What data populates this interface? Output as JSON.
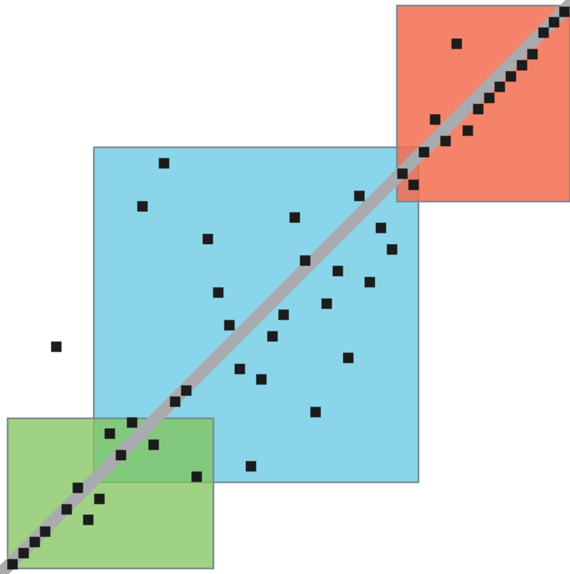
{
  "chart_data": {
    "type": "scatter",
    "title": "",
    "xlabel": "",
    "ylabel": "",
    "grid": false,
    "colors": {
      "green_region": "#8cc66f",
      "blue_region": "#73cde5",
      "red_region": "#f36b4c",
      "region_border": "#7b8b90",
      "diagonal_band": "#a9abae",
      "points": "#1c1c1c"
    },
    "series": [
      {
        "points": [
          [
            18,
            812
          ],
          [
            34,
            796
          ],
          [
            50,
            780
          ],
          [
            65,
            765
          ],
          [
            96,
            733
          ],
          [
            112,
            702
          ],
          [
            127,
            748
          ],
          [
            143,
            718
          ],
          [
            158,
            624
          ],
          [
            174,
            655
          ],
          [
            190,
            608
          ],
          [
            221,
            640
          ],
          [
            252,
            578
          ],
          [
            268,
            562
          ],
          [
            283,
            686
          ],
          [
            361,
            671
          ],
          [
            345,
            531
          ],
          [
            376,
            546
          ],
          [
            454,
            593
          ],
          [
            501,
            515
          ],
          [
            392,
            484
          ],
          [
            330,
            468
          ],
          [
            408,
            453
          ],
          [
            470,
            437
          ],
          [
            314,
            421
          ],
          [
            532,
            406
          ],
          [
            486,
            390
          ],
          [
            439,
            375
          ],
          [
            564,
            359
          ],
          [
            548,
            328
          ],
          [
            299,
            344
          ],
          [
            424,
            313
          ],
          [
            517,
            282
          ],
          [
            205,
            297
          ],
          [
            236,
            235
          ],
          [
            579,
            250
          ],
          [
            595,
            266
          ],
          [
            610,
            219
          ],
          [
            626,
            172
          ],
          [
            641,
            203
          ],
          [
            673,
            188
          ],
          [
            688,
            157
          ],
          [
            704,
            141
          ],
          [
            719,
            125
          ],
          [
            735,
            110
          ],
          [
            751,
            94
          ],
          [
            766,
            78
          ],
          [
            782,
            47
          ],
          [
            797,
            32
          ],
          [
            812,
            17
          ],
          [
            657,
            63
          ],
          [
            81,
            499
          ]
        ]
      }
    ]
  }
}
